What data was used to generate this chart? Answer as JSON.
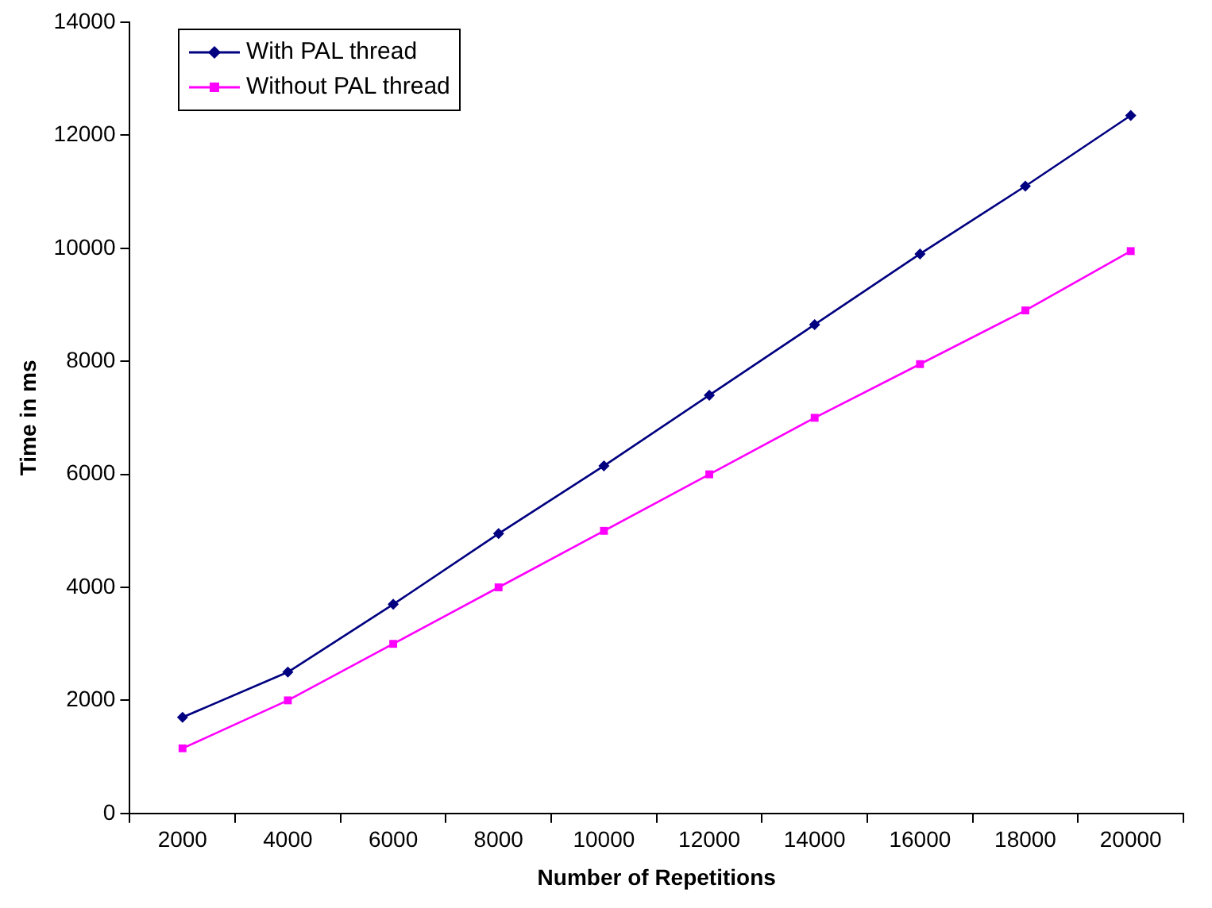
{
  "chart_data": {
    "type": "line",
    "xlabel": "Number of Repetitions",
    "ylabel": "Time in ms",
    "categories": [
      "2000",
      "4000",
      "6000",
      "8000",
      "10000",
      "12000",
      "14000",
      "16000",
      "18000",
      "20000"
    ],
    "series": [
      {
        "name": "With PAL thread",
        "color": "#000080",
        "marker": "diamond",
        "values": [
          1700,
          2500,
          3700,
          4950,
          6150,
          7400,
          8650,
          9900,
          11100,
          12350
        ]
      },
      {
        "name": "Without PAL thread",
        "color": "#ff00ff",
        "marker": "square",
        "values": [
          1150,
          2000,
          3000,
          4000,
          5000,
          6000,
          7000,
          7950,
          8900,
          9950
        ]
      }
    ],
    "ylim": [
      0,
      14000
    ],
    "yticks": [
      0,
      2000,
      4000,
      6000,
      8000,
      10000,
      12000,
      14000
    ],
    "grid": false,
    "legend": "top left",
    "line_style": "solid"
  }
}
